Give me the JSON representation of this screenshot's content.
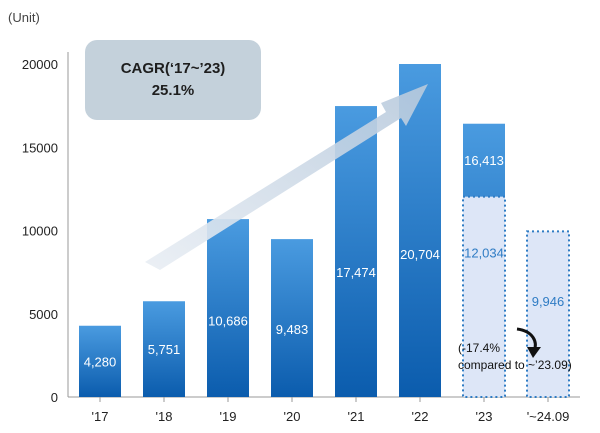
{
  "chart_data": {
    "type": "bar",
    "unit_label": "(Unit)",
    "categories": [
      "'17",
      "'18",
      "'19",
      "'20",
      "'21",
      "'22",
      "'23",
      "'~24.09"
    ],
    "values": [
      4280,
      5751,
      10686,
      9483,
      17474,
      20704,
      16413,
      9946
    ],
    "value_labels": [
      "4,280",
      "5,751",
      "10,686",
      "9,483",
      "17,474",
      "20,704",
      "16,413",
      "9,946"
    ],
    "overlay": {
      "category": "'23",
      "value": 12034,
      "label": "12,034"
    },
    "ylim": [
      0,
      20000
    ],
    "yticks": [
      0,
      5000,
      10000,
      15000,
      20000
    ],
    "annotation": {
      "title": "CAGR(‘17~’23)",
      "value": "25.1%"
    },
    "note_lines": [
      "(-17.4%",
      "compared to ~’23.09)"
    ],
    "colors": {
      "bar_top": "#4a9be0",
      "bar_bottom": "#0b5cad",
      "ghost_fill": "#dde6f7",
      "ghost_border": "#2f7cc4",
      "arrow": "#c7d6e6",
      "cagr_box": "#c4d1db"
    }
  }
}
